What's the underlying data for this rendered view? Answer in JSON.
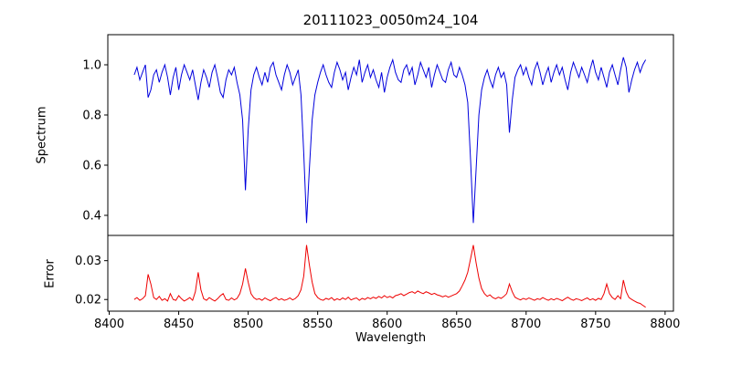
{
  "chart_data": {
    "type": "line",
    "title": "20111023_0050m24_104",
    "xlabel": "Wavelength",
    "xlim": [
      8399,
      8806
    ],
    "xticks": [
      8400,
      8450,
      8500,
      8550,
      8600,
      8650,
      8700,
      8750,
      8800
    ],
    "xtick_labels": [
      "8400",
      "8450",
      "8500",
      "8550",
      "8600",
      "8650",
      "8700",
      "8750",
      "8800"
    ],
    "x_start": 8418,
    "x_step": 2,
    "grid": false,
    "legend": "none",
    "subplots": [
      {
        "ylabel": "Spectrum",
        "color": "#0000dd",
        "ylim": [
          0.32,
          1.12
        ],
        "yticks": [
          0.4,
          0.6,
          0.8,
          1.0
        ],
        "ytick_labels": [
          "0.4",
          "0.6",
          "0.8",
          "1.0"
        ],
        "y": [
          0.96,
          0.99,
          0.94,
          0.97,
          1.0,
          0.87,
          0.9,
          0.96,
          0.98,
          0.93,
          0.97,
          1.0,
          0.95,
          0.88,
          0.95,
          0.99,
          0.9,
          0.96,
          1.0,
          0.97,
          0.94,
          0.98,
          0.92,
          0.86,
          0.93,
          0.98,
          0.95,
          0.91,
          0.97,
          1.0,
          0.95,
          0.89,
          0.87,
          0.94,
          0.98,
          0.96,
          0.99,
          0.93,
          0.88,
          0.78,
          0.5,
          0.74,
          0.9,
          0.96,
          0.99,
          0.95,
          0.92,
          0.97,
          0.93,
          0.99,
          1.01,
          0.96,
          0.93,
          0.9,
          0.96,
          1.0,
          0.97,
          0.92,
          0.95,
          0.98,
          0.88,
          0.65,
          0.37,
          0.58,
          0.78,
          0.88,
          0.93,
          0.97,
          1.0,
          0.96,
          0.93,
          0.91,
          0.97,
          1.01,
          0.98,
          0.94,
          0.97,
          0.9,
          0.95,
          0.99,
          0.96,
          1.02,
          0.93,
          0.97,
          1.0,
          0.95,
          0.98,
          0.94,
          0.91,
          0.97,
          0.89,
          0.95,
          0.99,
          1.02,
          0.97,
          0.94,
          0.93,
          0.98,
          1.0,
          0.96,
          0.99,
          0.92,
          0.96,
          1.01,
          0.98,
          0.95,
          0.99,
          0.91,
          0.96,
          1.0,
          0.97,
          0.94,
          0.93,
          0.98,
          1.01,
          0.96,
          0.95,
          0.99,
          0.96,
          0.92,
          0.85,
          0.62,
          0.37,
          0.58,
          0.8,
          0.9,
          0.95,
          0.98,
          0.94,
          0.91,
          0.96,
          0.99,
          0.95,
          0.97,
          0.92,
          0.73,
          0.86,
          0.95,
          0.98,
          1.0,
          0.96,
          0.99,
          0.95,
          0.92,
          0.98,
          1.01,
          0.97,
          0.92,
          0.96,
          0.99,
          0.93,
          0.97,
          1.0,
          0.96,
          0.99,
          0.94,
          0.9,
          0.97,
          1.01,
          0.98,
          0.95,
          0.99,
          0.96,
          0.93,
          0.98,
          1.02,
          0.97,
          0.94,
          0.99,
          0.95,
          0.91,
          0.97,
          1.0,
          0.96,
          0.92,
          0.98,
          1.03,
          0.99,
          0.89,
          0.94,
          0.98,
          1.01,
          0.97,
          1.0,
          1.02
        ]
      },
      {
        "ylabel": "Error",
        "color": "#ee0000",
        "ylim": [
          0.017,
          0.0365
        ],
        "yticks": [
          0.02,
          0.03
        ],
        "ytick_labels": [
          "0.02",
          "0.03"
        ],
        "y": [
          0.02,
          0.0205,
          0.0198,
          0.0202,
          0.021,
          0.0265,
          0.024,
          0.0205,
          0.02,
          0.0208,
          0.0198,
          0.0202,
          0.0196,
          0.0215,
          0.02,
          0.0198,
          0.021,
          0.0202,
          0.0196,
          0.02,
          0.0205,
          0.0198,
          0.022,
          0.027,
          0.0225,
          0.0202,
          0.0198,
          0.0205,
          0.02,
          0.0196,
          0.0202,
          0.021,
          0.0215,
          0.02,
          0.0198,
          0.0204,
          0.0199,
          0.0203,
          0.0215,
          0.024,
          0.028,
          0.0245,
          0.0215,
          0.0205,
          0.02,
          0.0202,
          0.0198,
          0.0204,
          0.02,
          0.0197,
          0.0202,
          0.0205,
          0.0199,
          0.0202,
          0.0198,
          0.02,
          0.0204,
          0.0199,
          0.0203,
          0.021,
          0.0225,
          0.026,
          0.034,
          0.029,
          0.0245,
          0.0215,
          0.0205,
          0.02,
          0.0198,
          0.0203,
          0.02,
          0.0205,
          0.0198,
          0.0202,
          0.0199,
          0.0204,
          0.02,
          0.0206,
          0.0199,
          0.0202,
          0.0204,
          0.0198,
          0.0203,
          0.02,
          0.0205,
          0.0202,
          0.0206,
          0.0203,
          0.0208,
          0.0204,
          0.021,
          0.0205,
          0.0208,
          0.0204,
          0.021,
          0.0212,
          0.0215,
          0.021,
          0.0214,
          0.0218,
          0.022,
          0.0216,
          0.0222,
          0.0218,
          0.0215,
          0.022,
          0.0217,
          0.0213,
          0.0216,
          0.0212,
          0.021,
          0.0207,
          0.021,
          0.0206,
          0.0209,
          0.0212,
          0.0215,
          0.0222,
          0.0235,
          0.025,
          0.027,
          0.0305,
          0.034,
          0.0295,
          0.0255,
          0.0228,
          0.0215,
          0.0208,
          0.0212,
          0.0205,
          0.0202,
          0.0206,
          0.0203,
          0.0208,
          0.0215,
          0.024,
          0.022,
          0.0206,
          0.0202,
          0.0199,
          0.0203,
          0.02,
          0.0204,
          0.0201,
          0.0198,
          0.0202,
          0.02,
          0.0205,
          0.0201,
          0.0198,
          0.0202,
          0.0199,
          0.0203,
          0.02,
          0.0197,
          0.0202,
          0.0206,
          0.0201,
          0.0198,
          0.0202,
          0.02,
          0.0197,
          0.0201,
          0.0204,
          0.0199,
          0.0202,
          0.0198,
          0.0203,
          0.02,
          0.0215,
          0.024,
          0.0215,
          0.0205,
          0.02,
          0.021,
          0.0202,
          0.025,
          0.022,
          0.0205,
          0.02,
          0.0196,
          0.0192,
          0.019,
          0.0185,
          0.018
        ]
      }
    ]
  }
}
